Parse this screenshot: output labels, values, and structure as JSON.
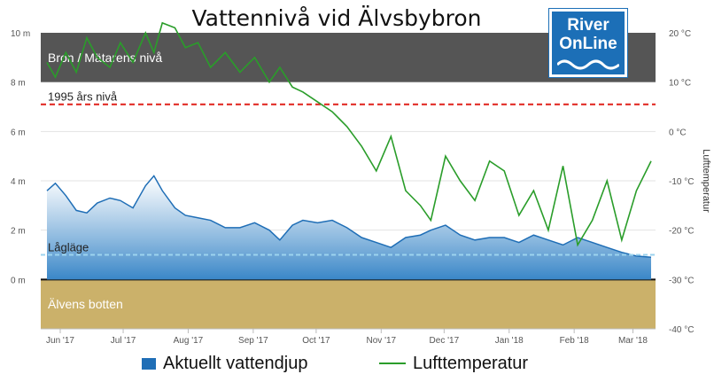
{
  "title": "Vattennivå vid Älvsbybron",
  "logo": {
    "line1": "River",
    "line2": "OnLine"
  },
  "colors": {
    "bridge_band": "#555555",
    "riverbed": "#cbb16a",
    "depth_fill": "#3a87c8",
    "depth_line": "#1f6eb6",
    "temperature": "#2a9d2a",
    "level_1995": "#e0201a",
    "low_level": "#9cd3ee"
  },
  "chart_data": {
    "type": "area",
    "x": [
      "2017-06-01",
      "2017-06-05",
      "2017-06-10",
      "2017-06-15",
      "2017-06-20",
      "2017-06-25",
      "2017-07-01",
      "2017-07-06",
      "2017-07-12",
      "2017-07-18",
      "2017-07-22",
      "2017-07-26",
      "2017-08-01",
      "2017-08-06",
      "2017-08-12",
      "2017-08-18",
      "2017-08-25",
      "2017-09-01",
      "2017-09-08",
      "2017-09-15",
      "2017-09-20",
      "2017-09-26",
      "2017-10-01",
      "2017-10-08",
      "2017-10-15",
      "2017-10-22",
      "2017-10-29",
      "2017-11-05",
      "2017-11-12",
      "2017-11-19",
      "2017-11-26",
      "2017-12-01",
      "2017-12-08",
      "2017-12-15",
      "2017-12-22",
      "2017-12-29",
      "2018-01-05",
      "2018-01-12",
      "2018-01-19",
      "2018-01-26",
      "2018-02-02",
      "2018-02-09",
      "2018-02-16",
      "2018-02-23",
      "2018-03-02",
      "2018-03-09",
      "2018-03-16"
    ],
    "series": [
      {
        "name": "Aktuellt vattendjup",
        "axis": "left",
        "values": [
          3.6,
          3.9,
          3.4,
          2.8,
          2.7,
          3.1,
          3.3,
          3.2,
          2.9,
          3.8,
          4.2,
          3.6,
          2.9,
          2.6,
          2.5,
          2.4,
          2.1,
          2.1,
          2.3,
          2.0,
          1.6,
          2.2,
          2.4,
          2.3,
          2.4,
          2.1,
          1.7,
          1.5,
          1.3,
          1.7,
          1.8,
          2.0,
          2.2,
          1.8,
          1.6,
          1.7,
          1.7,
          1.5,
          1.8,
          1.6,
          1.4,
          1.7,
          1.5,
          1.3,
          1.1,
          0.95,
          0.9
        ]
      },
      {
        "name": "Lufttemperatur",
        "axis": "right",
        "values": [
          14,
          11,
          16,
          12,
          19,
          15,
          13,
          18,
          14,
          20,
          16,
          22,
          21,
          17,
          18,
          13,
          16,
          12,
          15,
          10,
          13,
          9,
          8,
          6,
          4,
          1,
          -3,
          -8,
          -1,
          -12,
          -15,
          -18,
          -5,
          -10,
          -14,
          -6,
          -8,
          -17,
          -12,
          -20,
          -7,
          -23,
          -18,
          -10,
          -22,
          -12,
          -6
        ]
      }
    ],
    "y_left": {
      "ticks": [
        "10 m",
        "8 m",
        "6 m",
        "4 m",
        "2 m",
        "0 m"
      ],
      "range": [
        -2,
        10
      ]
    },
    "y_right": {
      "label": "Lufttemperatur",
      "ticks": [
        "20 °C",
        "10 °C",
        "0 °C",
        "-10 °C",
        "-20 °C",
        "-30 °C",
        "-40 °C"
      ],
      "range": [
        -40,
        20
      ]
    },
    "x_ticks": [
      "Jun '17",
      "Jul '17",
      "Aug '17",
      "Sep '17",
      "Oct '17",
      "Nov '17",
      "Dec '17",
      "Jan '18",
      "Feb '18",
      "Mar '18"
    ],
    "bands": [
      {
        "label": "Bron / Mätarens nivå",
        "from": 8,
        "to": 10
      },
      {
        "label": "Älvens botten",
        "from": -2,
        "to": 0
      }
    ],
    "plot_lines": [
      {
        "label": "1995 års nivå",
        "value": 7.1,
        "style": "dashed"
      },
      {
        "label": "Lågläge",
        "value": 1.0,
        "style": "dashed"
      }
    ],
    "legend": [
      {
        "label": "Aktuellt vattendjup",
        "symbol": "bar"
      },
      {
        "label": "Lufttemperatur",
        "symbol": "line"
      }
    ],
    "legend_position": "bottom"
  }
}
